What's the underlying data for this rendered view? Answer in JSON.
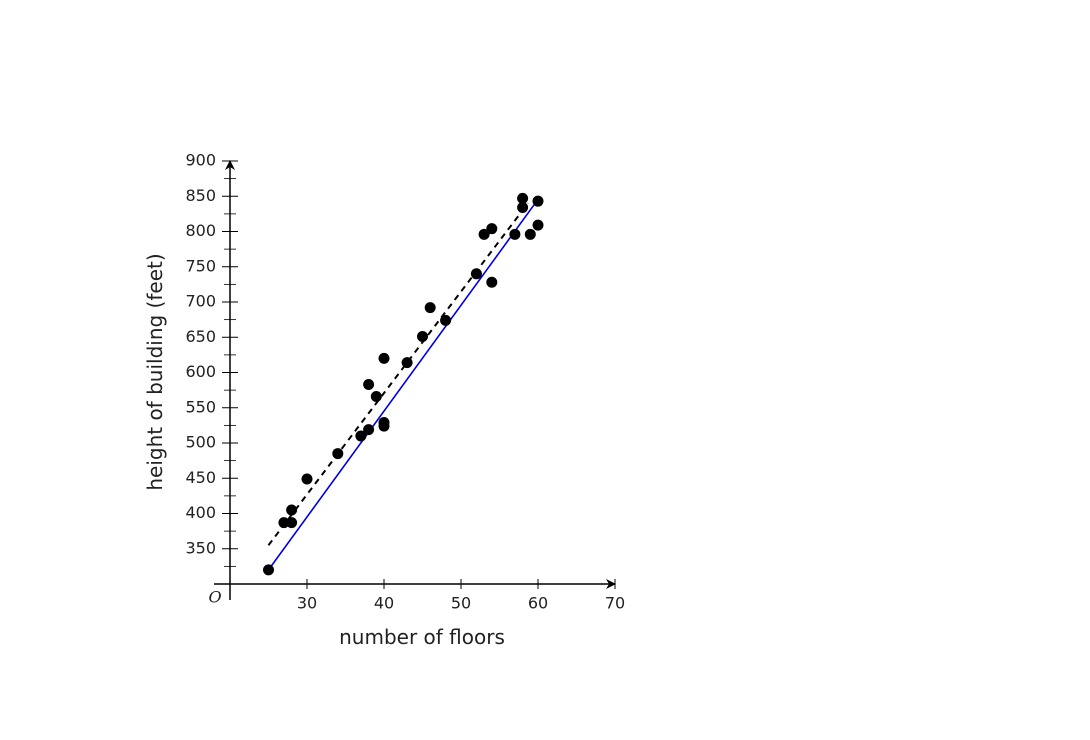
{
  "chart_data": {
    "type": "scatter",
    "xlabel": "number of floors",
    "ylabel": "height of building (feet)",
    "origin_label": "O",
    "xlim": [
      20,
      70
    ],
    "ylim": [
      300,
      900
    ],
    "xticks": [
      30,
      40,
      50,
      60,
      70
    ],
    "yticks": [
      350,
      400,
      450,
      500,
      550,
      600,
      650,
      700,
      750,
      800,
      850,
      900
    ],
    "yminorticks": [
      325,
      375,
      425,
      475,
      525,
      575,
      625,
      675,
      725,
      775,
      825,
      875
    ],
    "points": {
      "color": "#000000",
      "x": [
        25,
        27,
        28,
        28,
        30,
        34,
        37,
        38,
        38,
        39,
        40,
        40,
        40,
        43,
        45,
        46,
        48,
        52,
        53,
        54,
        54,
        57,
        58,
        58,
        59,
        60,
        60
      ],
      "y": [
        320,
        387,
        387,
        405,
        449,
        485,
        510,
        519,
        583,
        566,
        529,
        524,
        620,
        614,
        651,
        692,
        674,
        740,
        796,
        804,
        728,
        796,
        847,
        834,
        796,
        843,
        809
      ]
    },
    "lines": [
      {
        "color": "#0000dd",
        "dashed": false,
        "x": [
          25,
          59.5
        ],
        "y": [
          320,
          838
        ]
      },
      {
        "color": "#000000",
        "dashed": true,
        "x": [
          25,
          58.7
        ],
        "y": [
          355,
          840
        ]
      }
    ]
  }
}
